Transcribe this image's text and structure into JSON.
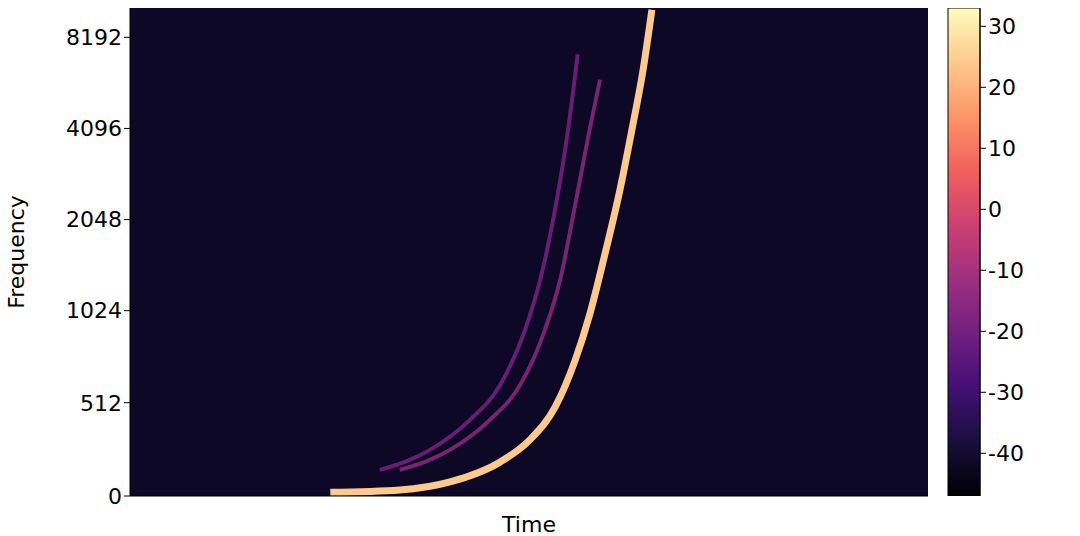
{
  "chart_data": {
    "type": "spectrogram",
    "x_label": "Time",
    "y_label": "Frequency",
    "log": "y",
    "grid": false,
    "tick_labels": "y",
    "xlim": [
      0,
      10
    ],
    "ylim": [
      0,
      10240
    ],
    "yticks": [
      0,
      512,
      1024,
      2048,
      4096,
      8192
    ],
    "series": [
      {
        "color": "#fec98d",
        "x": [
          2.51,
          3.38,
          4.01,
          4.64,
          5.01,
          5.33,
          5.58,
          5.76,
          5.95,
          6.14,
          6.29,
          6.43,
          6.54
        ],
        "values": [
          20,
          33,
          77,
          187,
          308,
          490,
          747,
          995,
          1569,
          2570,
          4060,
          6400,
          10100
        ]
      },
      {
        "color": "#8c2981",
        "x": [
          3.38,
          4.01,
          4.51,
          4.89,
          5.2,
          5.39,
          5.58,
          5.76,
          5.89
        ],
        "values": [
          143,
          253,
          418,
          610,
          912,
          1293,
          2300,
          4060,
          5940
        ]
      },
      {
        "color": "#7a2182",
        "x": [
          3.13,
          3.76,
          4.26,
          4.64,
          4.95,
          5.14,
          5.33,
          5.49,
          5.61
        ],
        "values": [
          143,
          253,
          418,
          610,
          912,
          1293,
          2240,
          4060,
          7200
        ]
      }
    ],
    "colorbar": {
      "range": [
        -47,
        33
      ],
      "ticks": [
        30,
        20,
        10,
        0,
        -10,
        -20,
        -30,
        -40
      ]
    }
  }
}
